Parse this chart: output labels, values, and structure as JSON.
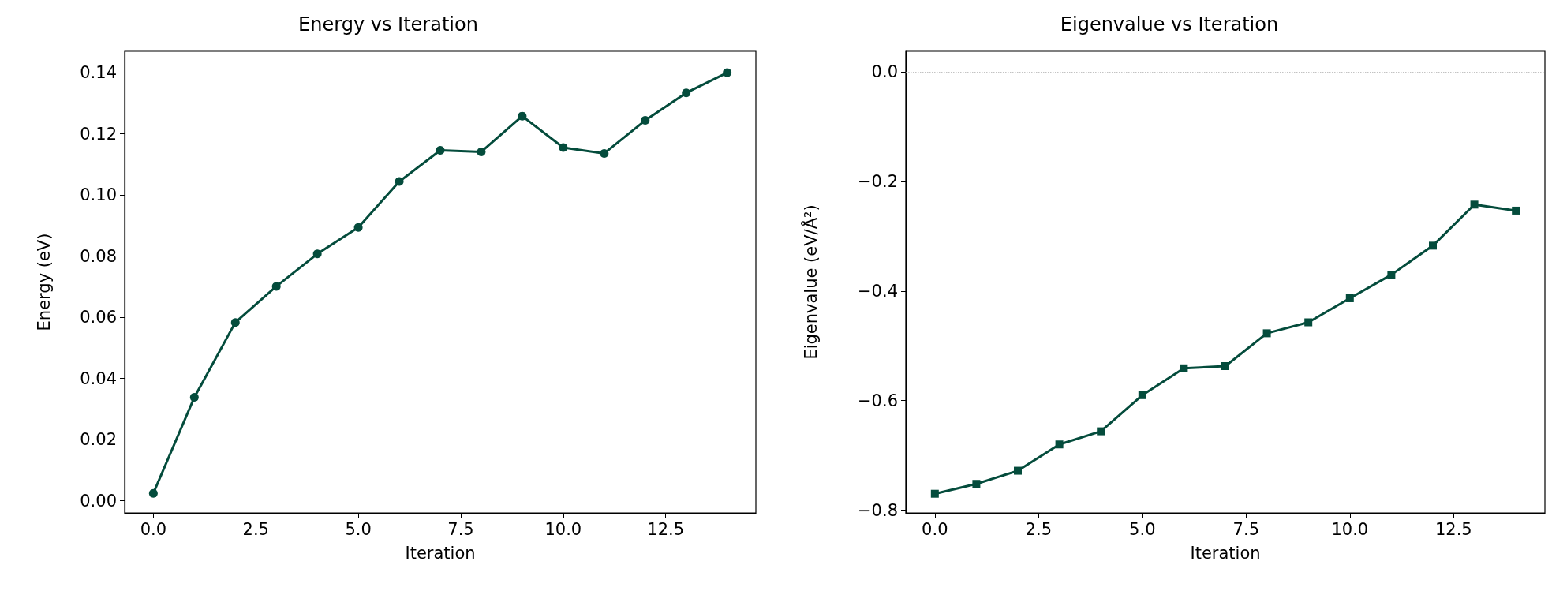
{
  "chart_data": [
    {
      "type": "line",
      "title": "Energy vs Iteration",
      "xlabel": "Iteration",
      "ylabel": "Energy (eV)",
      "marker": "circle",
      "line_style": "solid",
      "x": [
        0,
        1,
        2,
        3,
        4,
        5,
        6,
        7,
        8,
        9,
        10,
        11,
        12,
        13,
        14
      ],
      "series": [
        {
          "color": "#044c3c",
          "values": [
            0.0024,
            0.0338,
            0.0583,
            0.0701,
            0.0807,
            0.0894,
            0.1044,
            0.1146,
            0.1141,
            0.1258,
            0.1155,
            0.1136,
            0.1244,
            0.1334,
            0.14
          ]
        }
      ],
      "xlim": [
        -0.7,
        14.7
      ],
      "xticks": [
        {
          "value": 0,
          "label": "0.0"
        },
        {
          "value": 2.5,
          "label": "2.5"
        },
        {
          "value": 5,
          "label": "5.0"
        },
        {
          "value": 7.5,
          "label": "7.5"
        },
        {
          "value": 10,
          "label": "10.0"
        },
        {
          "value": 12.5,
          "label": "12.5"
        }
      ],
      "ylim": [
        -0.004,
        0.147
      ],
      "yticks": [
        {
          "value": 0,
          "label": "0.00"
        },
        {
          "value": 0.02,
          "label": "0.02"
        },
        {
          "value": 0.04,
          "label": "0.04"
        },
        {
          "value": 0.06,
          "label": "0.06"
        },
        {
          "value": 0.08,
          "label": "0.08"
        },
        {
          "value": 0.1,
          "label": "0.10"
        },
        {
          "value": 0.12,
          "label": "0.12"
        },
        {
          "value": 0.14,
          "label": "0.14"
        }
      ]
    },
    {
      "type": "line",
      "title": "Eigenvalue vs Iteration",
      "xlabel": "Iteration",
      "ylabel": "Eigenvalue (eV/Å²)",
      "marker": "square",
      "line_style": "solid",
      "x": [
        0,
        1,
        2,
        3,
        4,
        5,
        6,
        7,
        8,
        9,
        10,
        11,
        12,
        13,
        14
      ],
      "series": [
        {
          "color": "#044c3c",
          "values": [
            -0.77,
            -0.752,
            -0.728,
            -0.68,
            -0.656,
            -0.59,
            -0.541,
            -0.537,
            -0.477,
            -0.457,
            -0.413,
            -0.37,
            -0.317,
            -0.242,
            -0.253
          ]
        }
      ],
      "xlim": [
        -0.7,
        14.7
      ],
      "xticks": [
        {
          "value": 0,
          "label": "0.0"
        },
        {
          "value": 2.5,
          "label": "2.5"
        },
        {
          "value": 5,
          "label": "5.0"
        },
        {
          "value": 7.5,
          "label": "7.5"
        },
        {
          "value": 10,
          "label": "10.0"
        },
        {
          "value": 12.5,
          "label": "12.5"
        }
      ],
      "ylim": [
        -0.805,
        0.038
      ],
      "yticks": [
        {
          "value": -0.8,
          "label": "−0.8"
        },
        {
          "value": -0.6,
          "label": "−0.6"
        },
        {
          "value": -0.4,
          "label": "−0.4"
        },
        {
          "value": -0.2,
          "label": "−0.2"
        },
        {
          "value": 0,
          "label": "0.0"
        }
      ],
      "ref_lines": [
        {
          "axis": "y",
          "value": 0,
          "color": "#b0b0b0",
          "line_style": "dotted"
        }
      ]
    }
  ]
}
